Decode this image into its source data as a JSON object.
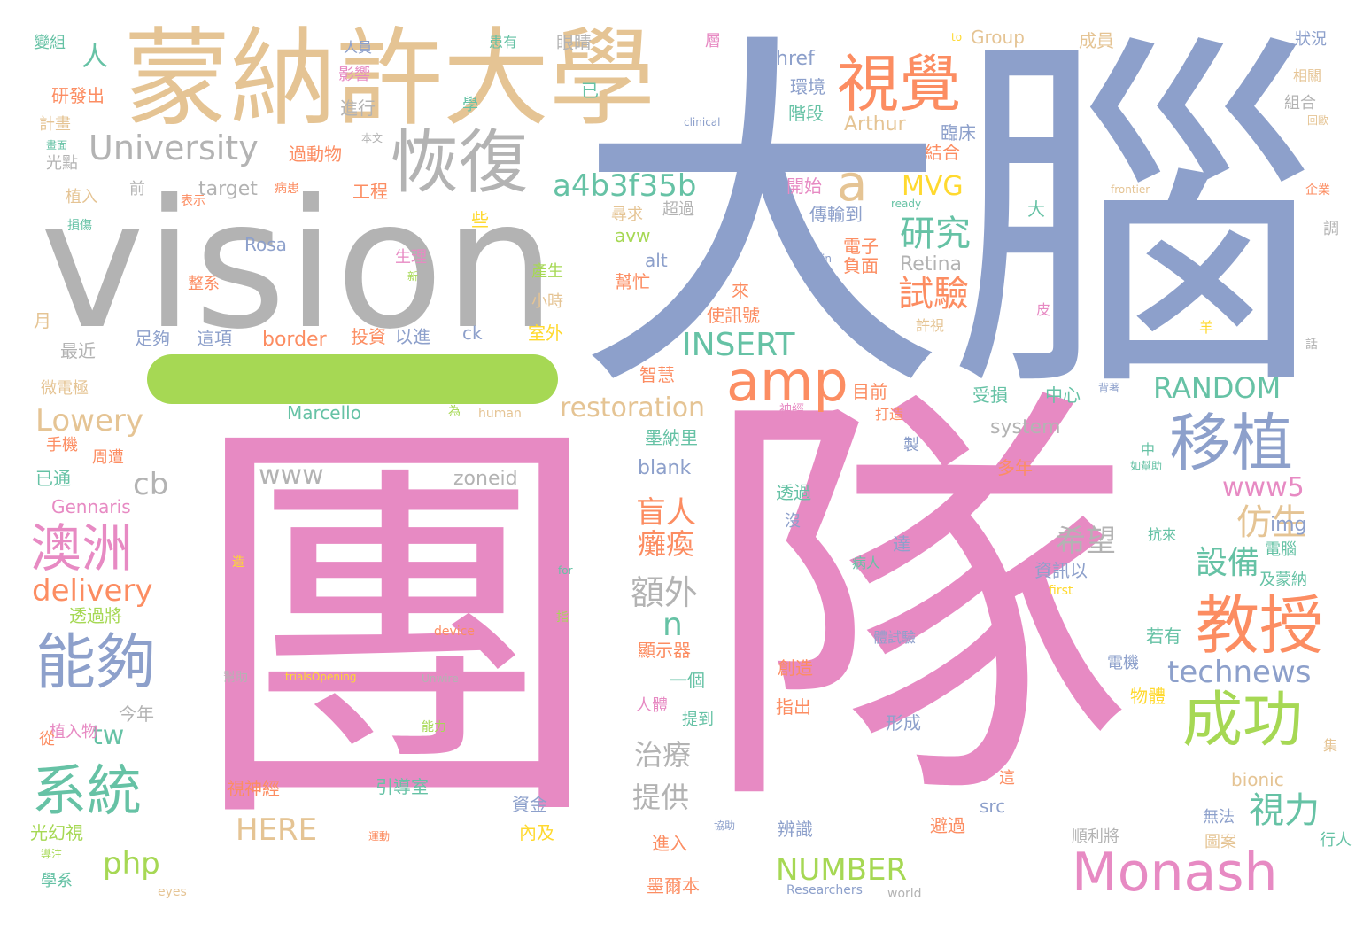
{
  "palette": {
    "blue": "#8da0cb",
    "pink": "#e78ac3",
    "gray": "#b3b3b3",
    "tan": "#e5c494",
    "orange": "#fc8d62",
    "green": "#66c2a5",
    "lime": "#a6d854",
    "yellow": "#ffd92f"
  },
  "words": [
    {
      "text": "團",
      "color": "pink"
    },
    {
      "text": "隊",
      "color": "pink"
    },
    {
      "text": "大腦",
      "color": "blue"
    },
    {
      "text": "vision",
      "color": "gray"
    },
    {
      "text": "蒙納許大學",
      "color": "tan"
    },
    {
      "text": "視覺",
      "color": "orange"
    },
    {
      "text": "恢復",
      "color": "gray"
    },
    {
      "text": "University",
      "color": "gray"
    },
    {
      "text": "a4b3f35b",
      "color": "green"
    },
    {
      "text": "a",
      "color": "tan"
    },
    {
      "text": "amp",
      "color": "orange"
    },
    {
      "text": "移植",
      "color": "blue"
    },
    {
      "text": "教授",
      "color": "orange"
    },
    {
      "text": "成功",
      "color": "lime"
    },
    {
      "text": "Monash",
      "color": "pink"
    },
    {
      "text": "能夠",
      "color": "blue"
    },
    {
      "text": "系統",
      "color": "green"
    },
    {
      "text": "澳洲",
      "color": "pink"
    },
    {
      "text": "delivery",
      "color": "orange"
    },
    {
      "text": "Lowery",
      "color": "tan"
    },
    {
      "text": "研究",
      "color": "green"
    },
    {
      "text": "試驗",
      "color": "orange"
    },
    {
      "text": "MVG",
      "color": "yellow"
    },
    {
      "text": "INSERT",
      "color": "green"
    },
    {
      "text": "RANDOM",
      "color": "green"
    },
    {
      "text": "restoration",
      "color": "tan"
    },
    {
      "text": "technews",
      "color": "blue"
    },
    {
      "text": "www5",
      "color": "pink"
    },
    {
      "text": "視力",
      "color": "green"
    },
    {
      "text": "設備",
      "color": "green"
    },
    {
      "text": "仿生",
      "color": "tan"
    },
    {
      "text": "盲人",
      "color": "orange"
    },
    {
      "text": "癱瘓",
      "color": "orange"
    },
    {
      "text": "希望",
      "color": "gray"
    },
    {
      "text": "額外",
      "color": "gray"
    },
    {
      "text": "www",
      "color": "gray"
    },
    {
      "text": "zoneid",
      "color": "gray"
    },
    {
      "text": "cb",
      "color": "gray"
    },
    {
      "text": "php",
      "color": "lime"
    },
    {
      "text": "tw",
      "color": "green"
    },
    {
      "text": "HERE",
      "color": "tan"
    },
    {
      "text": "NUMBER",
      "color": "lime"
    },
    {
      "text": "n",
      "color": "green"
    },
    {
      "text": "治療",
      "color": "gray"
    },
    {
      "text": "提供",
      "color": "gray"
    },
    {
      "text": "Retina",
      "color": "gray"
    },
    {
      "text": "border",
      "color": "orange"
    },
    {
      "text": "target",
      "color": "gray"
    },
    {
      "text": "Rosa",
      "color": "blue"
    },
    {
      "text": "Marcello",
      "color": "green"
    },
    {
      "text": "Gennaris",
      "color": "pink"
    },
    {
      "text": "system",
      "color": "gray"
    },
    {
      "text": "blank",
      "color": "blue"
    },
    {
      "text": "bionic",
      "color": "tan"
    },
    {
      "text": "img",
      "color": "blue"
    },
    {
      "text": "src",
      "color": "blue"
    },
    {
      "text": "href",
      "color": "blue"
    },
    {
      "text": "alt",
      "color": "blue"
    },
    {
      "text": "avw",
      "color": "lime"
    },
    {
      "text": "ck",
      "color": "blue"
    },
    {
      "text": "Arthur",
      "color": "tan"
    },
    {
      "text": "Group",
      "color": "tan"
    },
    {
      "text": "to",
      "color": "yellow"
    },
    {
      "text": "人",
      "color": "green"
    },
    {
      "text": "電子",
      "color": "orange"
    },
    {
      "text": "負面",
      "color": "orange"
    },
    {
      "text": "臨床",
      "color": "blue"
    },
    {
      "text": "結合",
      "color": "orange"
    },
    {
      "text": "組合",
      "color": "gray"
    },
    {
      "text": "階段",
      "color": "green"
    },
    {
      "text": "環境",
      "color": "blue"
    },
    {
      "text": "開始",
      "color": "pink"
    },
    {
      "text": "傳輸到",
      "color": "blue"
    },
    {
      "text": "眼睛",
      "color": "gray"
    },
    {
      "text": "成員",
      "color": "tan"
    },
    {
      "text": "狀況",
      "color": "blue"
    },
    {
      "text": "相關",
      "color": "tan"
    },
    {
      "text": "人員",
      "color": "blue"
    },
    {
      "text": "影響",
      "color": "pink"
    },
    {
      "text": "進行",
      "color": "gray"
    },
    {
      "text": "研發出",
      "color": "orange"
    },
    {
      "text": "計畫",
      "color": "tan"
    },
    {
      "text": "光點",
      "color": "gray"
    },
    {
      "text": "植入",
      "color": "tan"
    },
    {
      "text": "過動物",
      "color": "orange"
    },
    {
      "text": "工程",
      "color": "orange"
    },
    {
      "text": "表示",
      "color": "orange"
    },
    {
      "text": "病患",
      "color": "orange"
    },
    {
      "text": "前",
      "color": "gray"
    },
    {
      "text": "損傷",
      "color": "green"
    },
    {
      "text": "尋求",
      "color": "tan"
    },
    {
      "text": "超過",
      "color": "gray"
    },
    {
      "text": "產生",
      "color": "lime"
    },
    {
      "text": "小時",
      "color": "tan"
    },
    {
      "text": "幫忙",
      "color": "orange"
    },
    {
      "text": "來",
      "color": "orange"
    },
    {
      "text": "使訊號",
      "color": "orange"
    },
    {
      "text": "生理",
      "color": "pink"
    },
    {
      "text": "整系",
      "color": "orange"
    },
    {
      "text": "室外",
      "color": "yellow"
    },
    {
      "text": "足夠",
      "color": "blue"
    },
    {
      "text": "這項",
      "color": "blue"
    },
    {
      "text": "投資",
      "color": "orange"
    },
    {
      "text": "以進",
      "color": "blue"
    },
    {
      "text": "智慧",
      "color": "orange"
    },
    {
      "text": "目前",
      "color": "orange"
    },
    {
      "text": "打造",
      "color": "orange"
    },
    {
      "text": "神經",
      "color": "pink"
    },
    {
      "text": "受損",
      "color": "green"
    },
    {
      "text": "中心",
      "color": "green"
    },
    {
      "text": "最近",
      "color": "gray"
    },
    {
      "text": "微電極",
      "color": "tan"
    },
    {
      "text": "手機",
      "color": "orange"
    },
    {
      "text": "周遭",
      "color": "orange"
    },
    {
      "text": "已通",
      "color": "green"
    },
    {
      "text": "月",
      "color": "tan"
    },
    {
      "text": "墨納里",
      "color": "green"
    },
    {
      "text": "透過將",
      "color": "lime"
    },
    {
      "text": "今年",
      "color": "gray"
    },
    {
      "text": "植入物",
      "color": "pink"
    },
    {
      "text": "從",
      "color": "orange"
    },
    {
      "text": "幫助",
      "color": "gray"
    },
    {
      "text": "trialsOpening",
      "color": "yellow"
    },
    {
      "text": "Unwire",
      "color": "gray"
    },
    {
      "text": "device",
      "color": "orange"
    },
    {
      "text": "能力",
      "color": "lime"
    },
    {
      "text": "視神經",
      "color": "orange"
    },
    {
      "text": "引導室",
      "color": "green"
    },
    {
      "text": "資金",
      "color": "blue"
    },
    {
      "text": "內及",
      "color": "yellow"
    },
    {
      "text": "光幻視",
      "color": "lime"
    },
    {
      "text": "學系",
      "color": "green"
    },
    {
      "text": "運動",
      "color": "orange"
    },
    {
      "text": "協助",
      "color": "blue"
    },
    {
      "text": "eyes",
      "color": "tan"
    },
    {
      "text": "Researchers",
      "color": "blue"
    },
    {
      "text": "world",
      "color": "gray"
    },
    {
      "text": "墨爾本",
      "color": "orange"
    },
    {
      "text": "進入",
      "color": "orange"
    },
    {
      "text": "辨識",
      "color": "blue"
    },
    {
      "text": "避過",
      "color": "orange"
    },
    {
      "text": "順利將",
      "color": "gray"
    },
    {
      "text": "圖案",
      "color": "tan"
    },
    {
      "text": "行人",
      "color": "green"
    },
    {
      "text": "無法",
      "color": "blue"
    },
    {
      "text": "形成",
      "color": "blue"
    },
    {
      "text": "人體",
      "color": "pink"
    },
    {
      "text": "提到",
      "color": "green"
    },
    {
      "text": "顯示器",
      "color": "orange"
    },
    {
      "text": "一個",
      "color": "green"
    },
    {
      "text": "創造",
      "color": "orange"
    },
    {
      "text": "指出",
      "color": "orange"
    },
    {
      "text": "體試驗",
      "color": "blue"
    },
    {
      "text": "病人",
      "color": "green"
    },
    {
      "text": "達",
      "color": "blue"
    },
    {
      "text": "資訊以",
      "color": "blue"
    },
    {
      "text": "first",
      "color": "yellow"
    },
    {
      "text": "for",
      "color": "green"
    },
    {
      "text": "指",
      "color": "lime"
    },
    {
      "text": "造",
      "color": "yellow"
    },
    {
      "text": "沒",
      "color": "blue"
    },
    {
      "text": "透過",
      "color": "green"
    },
    {
      "text": "多年",
      "color": "orange"
    },
    {
      "text": "製",
      "color": "blue"
    },
    {
      "text": "若有",
      "color": "green"
    },
    {
      "text": "電機",
      "color": "blue"
    },
    {
      "text": "物體",
      "color": "yellow"
    },
    {
      "text": "電腦",
      "color": "green"
    },
    {
      "text": "及蒙納",
      "color": "green"
    },
    {
      "text": "抗來",
      "color": "green"
    },
    {
      "text": "如幫助",
      "color": "green"
    },
    {
      "text": "中",
      "color": "green"
    },
    {
      "text": "背著",
      "color": "blue"
    },
    {
      "text": "human",
      "color": "tan"
    },
    {
      "text": "為",
      "color": "lime"
    },
    {
      "text": "許視",
      "color": "tan"
    },
    {
      "text": "皮",
      "color": "pink"
    },
    {
      "text": "羊",
      "color": "yellow"
    },
    {
      "text": "話",
      "color": "gray"
    },
    {
      "text": "調",
      "color": "gray"
    },
    {
      "text": "企業",
      "color": "orange"
    },
    {
      "text": "frontier",
      "color": "tan"
    },
    {
      "text": "ready",
      "color": "green"
    },
    {
      "text": "in",
      "color": "blue"
    },
    {
      "text": "大",
      "color": "green"
    },
    {
      "text": "新",
      "color": "lime"
    },
    {
      "text": "些",
      "color": "yellow"
    },
    {
      "text": "學",
      "color": "green"
    },
    {
      "text": "已",
      "color": "green"
    },
    {
      "text": "患有",
      "color": "green"
    },
    {
      "text": "層",
      "color": "pink"
    },
    {
      "text": "變組",
      "color": "green"
    },
    {
      "text": "本文",
      "color": "gray"
    },
    {
      "text": "clinical",
      "color": "blue"
    },
    {
      "text": "畫面",
      "color": "green"
    },
    {
      "text": "回歐",
      "color": "tan"
    },
    {
      "text": "集",
      "color": "tan"
    },
    {
      "text": "這",
      "color": "orange"
    },
    {
      "text": "導注",
      "color": "lime"
    }
  ]
}
